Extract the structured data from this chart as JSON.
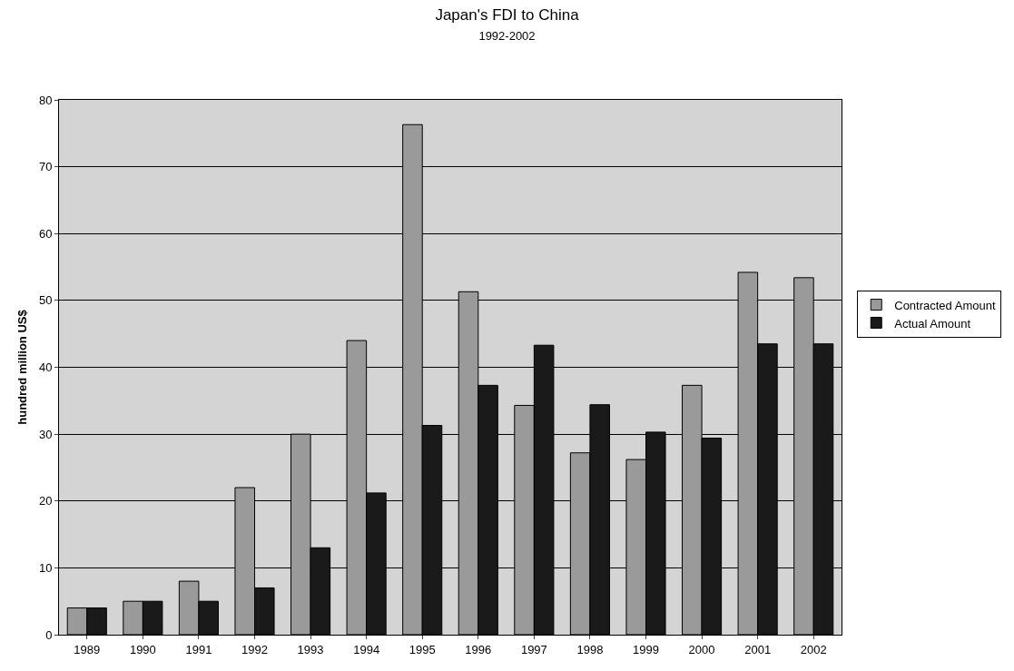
{
  "chart_data": {
    "type": "bar",
    "title": "Japan's FDI to China",
    "subtitle": "1992-2002",
    "ylabel": "hundred million US$",
    "categories": [
      "1989",
      "1990",
      "1991",
      "1992",
      "1993",
      "1994",
      "1995",
      "1996",
      "1997",
      "1998",
      "1999",
      "2000",
      "2001",
      "2002"
    ],
    "series": [
      {
        "name": "Contracted Amount",
        "color": "#9a9a9a",
        "values": [
          4,
          5,
          8,
          22,
          30,
          44,
          76.3,
          51.3,
          34.3,
          27.2,
          26.2,
          37.3,
          54.2,
          53.4
        ]
      },
      {
        "name": "Actual Amount",
        "color": "#1a1a1a",
        "values": [
          4,
          5,
          5,
          7,
          13,
          21.2,
          31.3,
          37.3,
          43.3,
          34.4,
          30.3,
          29.4,
          43.5,
          43.5
        ]
      }
    ],
    "ylim": [
      0,
      80
    ],
    "yticks": [
      0,
      10,
      20,
      30,
      40,
      50,
      60,
      70,
      80
    ],
    "grid": "y",
    "legend": "right"
  }
}
